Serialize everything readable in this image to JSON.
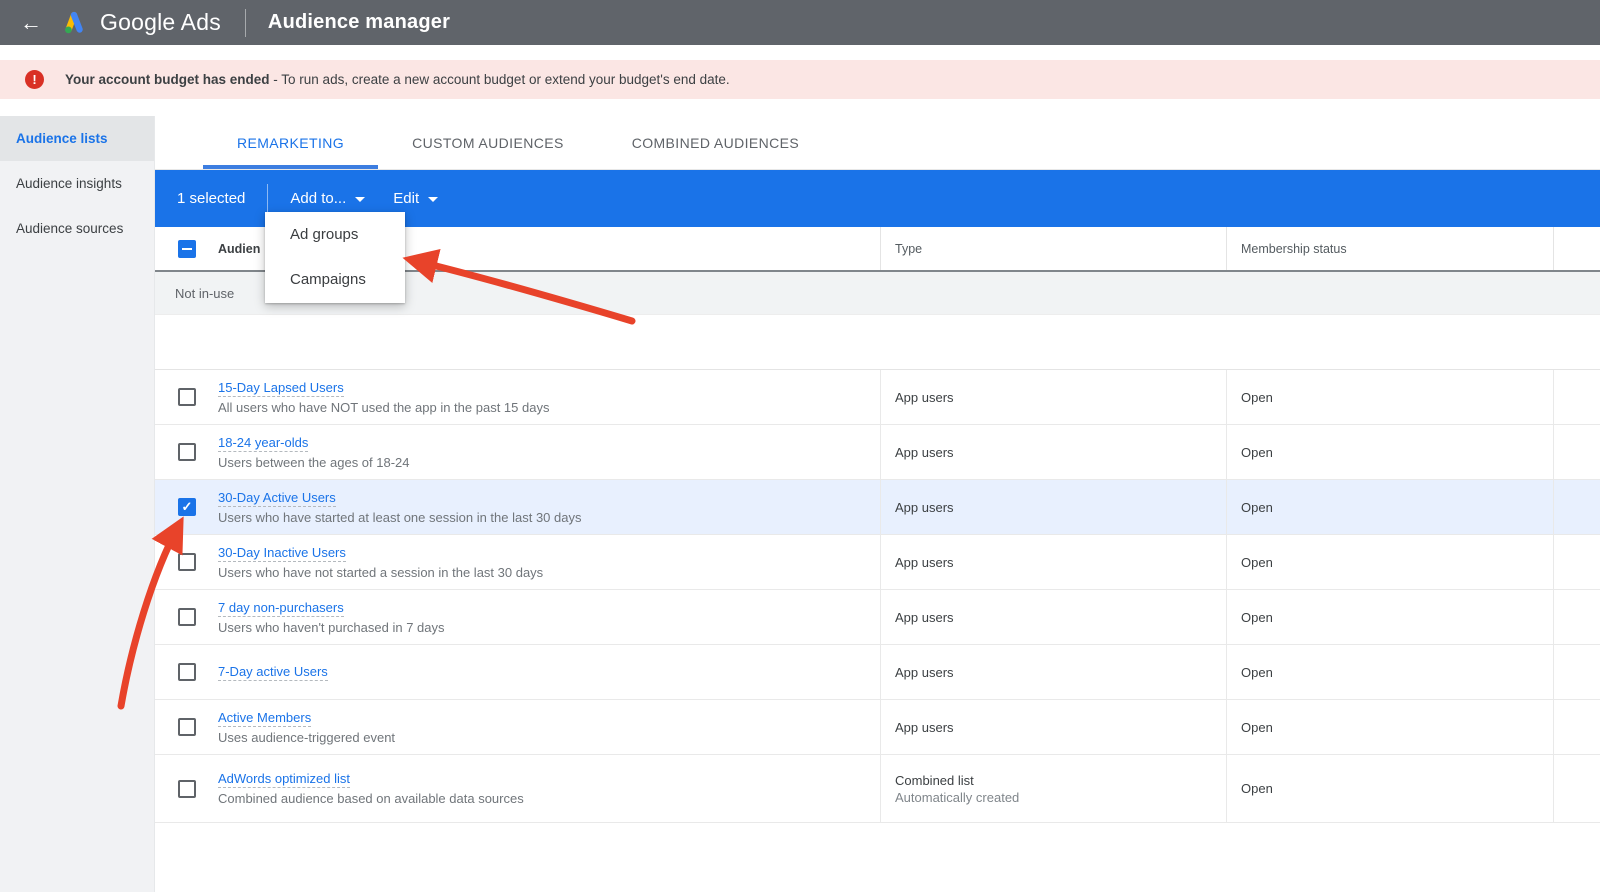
{
  "header": {
    "back_label": "back",
    "brand": "Google Ads",
    "title": "Audience manager"
  },
  "icons": {
    "back_arrow": "←",
    "error_mark": "!",
    "check": "✓"
  },
  "banner": {
    "bold": "Your account budget has ended",
    "rest": " - To run ads, create a new account budget or extend your budget's end date."
  },
  "sidebar": {
    "items": [
      {
        "label": "Audience lists",
        "active": true
      },
      {
        "label": "Audience insights",
        "active": false
      },
      {
        "label": "Audience sources",
        "active": false
      }
    ]
  },
  "tabs": [
    {
      "label": "REMARKETING",
      "active": true
    },
    {
      "label": "CUSTOM AUDIENCES",
      "active": false
    },
    {
      "label": "COMBINED AUDIENCES",
      "active": false
    }
  ],
  "action_bar": {
    "selected_count": "1 selected",
    "add_to_label": "Add to...",
    "edit_label": "Edit"
  },
  "dropdown": {
    "items": [
      "Ad groups",
      "Campaigns"
    ]
  },
  "table": {
    "columns": {
      "audience": "Audien",
      "type": "Type",
      "membership": "Membership status"
    },
    "section_label": "Not in-use",
    "rows": [
      {
        "name": "15-Day Lapsed Users",
        "desc": "All users who have NOT used the app in the past 15 days",
        "type": "App users",
        "type_sub": "",
        "status": "Open",
        "checked": false,
        "selected": false
      },
      {
        "name": "18-24 year-olds",
        "desc": "Users between the ages of 18-24",
        "type": "App users",
        "type_sub": "",
        "status": "Open",
        "checked": false,
        "selected": false
      },
      {
        "name": "30-Day Active Users",
        "desc": "Users who have started at least one session in the last 30 days",
        "type": "App users",
        "type_sub": "",
        "status": "Open",
        "checked": true,
        "selected": true
      },
      {
        "name": "30-Day Inactive Users",
        "desc": "Users who have not started a session in the last 30 days",
        "type": "App users",
        "type_sub": "",
        "status": "Open",
        "checked": false,
        "selected": false
      },
      {
        "name": "7 day non-purchasers",
        "desc": "Users who haven't purchased in 7 days",
        "type": "App users",
        "type_sub": "",
        "status": "Open",
        "checked": false,
        "selected": false
      },
      {
        "name": "7-Day active Users",
        "desc": "",
        "type": "App users",
        "type_sub": "",
        "status": "Open",
        "checked": false,
        "selected": false
      },
      {
        "name": "Active Members",
        "desc": "Uses audience-triggered event",
        "type": "App users",
        "type_sub": "",
        "status": "Open",
        "checked": false,
        "selected": false
      },
      {
        "name": "AdWords optimized list",
        "desc": "Combined audience based on available data sources",
        "type": "Combined list",
        "type_sub": "Automatically created",
        "status": "Open",
        "checked": false,
        "selected": false
      }
    ]
  },
  "colors": {
    "topbar": "#60646a",
    "banner_bg": "#fbe6e4",
    "error_red": "#d93025",
    "accent_blue": "#1a73e8",
    "selected_row": "#e8f0fe",
    "section_gray": "#f1f3f4",
    "arrow": "#e8432a",
    "logo_yellow": "#fbbc04",
    "logo_blue": "#4285f4",
    "logo_green": "#34a853"
  }
}
